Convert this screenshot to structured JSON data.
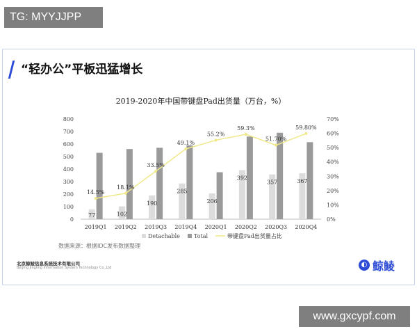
{
  "watermark_top": "TG: MYYJJPP",
  "watermark_bottom": "www.gxcypf.com",
  "slide": {
    "title": "“轻办公”平板迅猛增长",
    "source": "数据来源：根据IDC发布数据整理",
    "company_cn": "北京鲸鲮信息系统技术有限公司",
    "company_en": "Beijing Jingling Information System Technology Co.,Ltd",
    "brand": "鲸鲮",
    "accent_color": "#2c4bd6"
  },
  "chart_data": {
    "type": "bar",
    "title": "2019-2020年中国带键盘Pad出货量（万台，%）",
    "categories": [
      "2019Q1",
      "2019Q2",
      "2019Q3",
      "2019Q4",
      "2020Q1",
      "2020Q2",
      "2020Q3",
      "2020Q4"
    ],
    "series": [
      {
        "name": "Detachable",
        "kind": "bar",
        "axis": "left",
        "color": "#dcdcdc",
        "values": [
          77,
          102,
          190,
          285,
          206,
          392,
          357,
          367
        ]
      },
      {
        "name": "Total",
        "kind": "bar",
        "axis": "left",
        "color": "#9a9a9a",
        "values": [
          530,
          560,
          570,
          590,
          375,
          660,
          690,
          615
        ]
      },
      {
        "name": "带键盘Pad出货量占比",
        "kind": "line",
        "axis": "right",
        "color": "#f0e98a",
        "values": [
          14.5,
          18.1,
          33.5,
          49.1,
          55.2,
          59.3,
          51.7,
          59.8
        ],
        "labels": [
          "14.5%",
          "18.1%",
          "33.5%",
          "49.1%",
          "55.2%",
          "59.3%",
          "51.70%",
          "59.80%"
        ]
      }
    ],
    "ylim": [
      0,
      800
    ],
    "yticks": [
      "0",
      "100",
      "200",
      "300",
      "400",
      "500",
      "600",
      "700",
      "800"
    ],
    "y2lim": [
      0,
      70
    ],
    "y2ticks": [
      "0%",
      "10%",
      "20%",
      "30%",
      "40%",
      "50%",
      "60%",
      "70%"
    ],
    "legend": "bottom",
    "grid": false
  }
}
